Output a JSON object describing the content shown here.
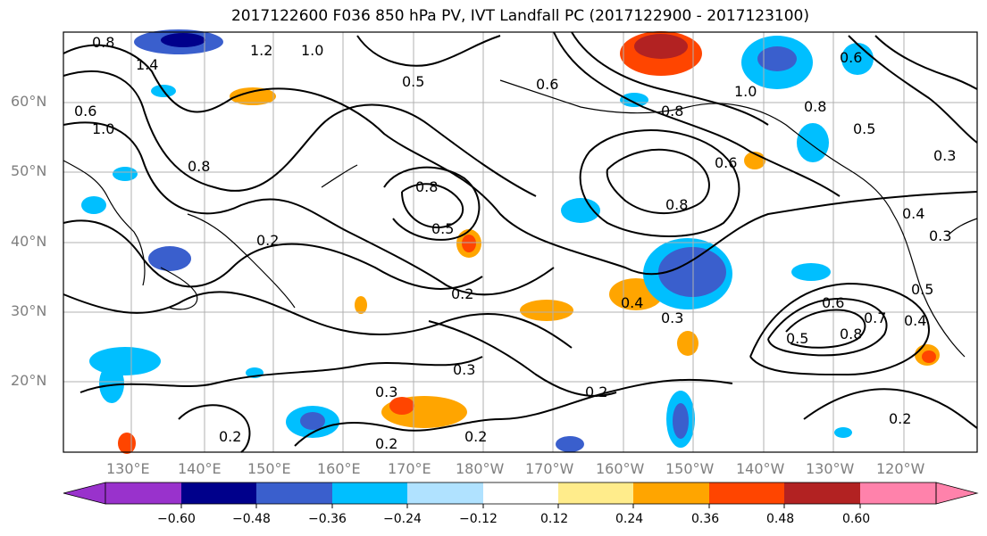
{
  "title": "2017122600 F036 850 hPa PV, IVT Landfall PC (2017122900 - 2017123100)",
  "lat_labels": [
    "60°N",
    "50°N",
    "40°N",
    "30°N",
    "20°N"
  ],
  "lon_labels": [
    "130°E",
    "140°E",
    "150°E",
    "160°E",
    "170°E",
    "180°W",
    "170°W",
    "160°W",
    "150°W",
    "140°W",
    "130°W",
    "120°W"
  ],
  "colorbar": {
    "ticks": [
      "−0.60",
      "−0.48",
      "−0.36",
      "−0.24",
      "−0.12",
      "0.12",
      "0.24",
      "0.36",
      "0.48",
      "0.60"
    ],
    "colors": [
      "#9932cc",
      "#00008b",
      "#3a5fcd",
      "#00bfff",
      "#b0e2ff",
      "#ffffff",
      "#ffec8b",
      "#ffa500",
      "#ff4500",
      "#b22222",
      "#ff82ab"
    ]
  },
  "contour_labels": [
    "0.8",
    "1.4",
    "1.2",
    "1.0",
    "0.6",
    "1.0",
    "0.8",
    "0.2",
    "0.5",
    "0.8",
    "0.5",
    "0.2",
    "0.3",
    "0.3",
    "0.2",
    "0.2",
    "0.2",
    "0.4",
    "0.3",
    "0.6",
    "0.8",
    "0.6",
    "0.8",
    "0.5",
    "0.8",
    "0.7",
    "0.4",
    "0.3",
    "0.5",
    "0.4",
    "0.6",
    "0.3",
    "0.2",
    "0.2",
    "1.0",
    "0.8",
    "0.5",
    "0.6"
  ],
  "icons": {
    "map": "north-pacific-map"
  }
}
